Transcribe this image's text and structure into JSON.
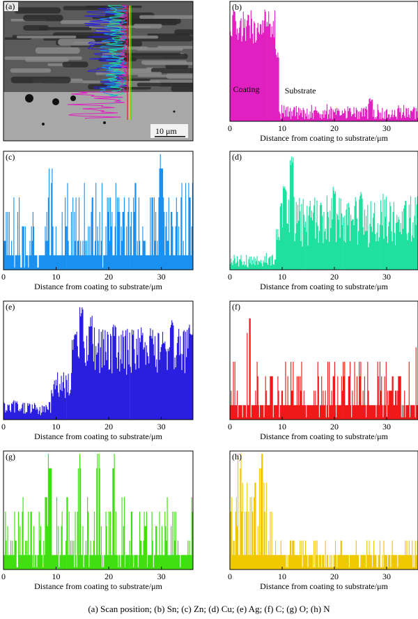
{
  "caption": "(a) Scan position; (b) Sn; (c) Zn; (d) Cu; (e) Ag; (f) C; (g) O;  (h) N",
  "sem": {
    "label": "(a)",
    "scale_bar": "10 μm"
  },
  "chart_data": [
    {
      "id": "b",
      "label": "(b)",
      "element": "Sn",
      "type": "bar",
      "color": "#e020c0",
      "xlabel": "Distance from coating to substrate/μm",
      "xticks": [
        0,
        10,
        20,
        30
      ],
      "xlim": [
        0,
        36
      ],
      "annotations": [
        "Coating",
        "Substrate"
      ],
      "profile": {
        "seed": 2,
        "base": 0.08,
        "noise": 0.05,
        "segments": [
          [
            0,
            8.6,
            0.82,
            0.15
          ],
          [
            8.6,
            36,
            0.07,
            0.06
          ]
        ],
        "peaks": [
          [
            0.8,
            0.98
          ],
          [
            3.5,
            0.95
          ],
          [
            7.0,
            0.9
          ],
          [
            9.0,
            0.62
          ],
          [
            27.0,
            0.2
          ]
        ]
      }
    },
    {
      "id": "c",
      "label": "(c)",
      "element": "Zn",
      "type": "bar",
      "color": "#1a90f0",
      "xlabel": "Distance from coating to substrate/μm",
      "xticks": [
        0,
        10,
        20,
        30
      ],
      "xlim": [
        0,
        36
      ],
      "annotations": [],
      "profile": {
        "seed": 3,
        "base": 0.3,
        "noise": 0.25,
        "quantized": true,
        "segments": [
          [
            0,
            8.5,
            0.28,
            0.25
          ],
          [
            8.5,
            36,
            0.42,
            0.3
          ]
        ],
        "peaks": [
          [
            9.0,
            0.92
          ],
          [
            30.0,
            1.0
          ]
        ]
      }
    },
    {
      "id": "d",
      "label": "(d)",
      "element": "Cu",
      "type": "bar",
      "color": "#20e0a0",
      "xlabel": "Distance from coating to substrate/μm",
      "xticks": [
        0,
        10,
        20,
        30
      ],
      "xlim": [
        0,
        36
      ],
      "annotations": [],
      "profile": {
        "seed": 4,
        "base": 0.08,
        "noise": 0.06,
        "segments": [
          [
            0,
            8.8,
            0.08,
            0.05
          ],
          [
            8.8,
            36,
            0.42,
            0.22
          ]
        ],
        "peaks": [
          [
            11.8,
            1.0
          ],
          [
            10.5,
            0.78
          ],
          [
            20.0,
            0.72
          ],
          [
            25.0,
            0.68
          ],
          [
            33.5,
            0.62
          ]
        ]
      }
    },
    {
      "id": "e",
      "label": "(e)",
      "element": "Ag",
      "type": "bar",
      "color": "#2a1ee0",
      "xlabel": "Distance from coating to substrate/μm",
      "xticks": [
        0,
        10,
        20,
        30
      ],
      "xlim": [
        0,
        36
      ],
      "annotations": [],
      "profile": {
        "seed": 5,
        "base": 0.08,
        "noise": 0.05,
        "segments": [
          [
            0,
            9.0,
            0.1,
            0.06
          ],
          [
            9.0,
            13.0,
            0.3,
            0.12
          ],
          [
            13.0,
            36,
            0.6,
            0.2
          ]
        ],
        "peaks": [
          [
            14.8,
            1.0
          ],
          [
            16.5,
            0.9
          ],
          [
            21.0,
            0.85
          ],
          [
            28.0,
            0.82
          ],
          [
            32.0,
            0.93
          ],
          [
            35.5,
            0.85
          ]
        ]
      }
    },
    {
      "id": "f",
      "label": "(f)",
      "element": "C",
      "type": "bar",
      "color": "#f01818",
      "xlabel": "Distance from coating to substrate/μm",
      "xticks": [
        0,
        10,
        20,
        30
      ],
      "xlim": [
        0,
        36
      ],
      "annotations": [],
      "profile": {
        "seed": 6,
        "base": 0.2,
        "noise": 0.2,
        "quantized": true,
        "segments": [
          [
            0,
            36,
            0.25,
            0.25
          ]
        ],
        "peaks": [
          [
            3.6,
            0.9
          ]
        ]
      }
    },
    {
      "id": "g",
      "label": "(g)",
      "element": "O",
      "type": "bar",
      "color": "#40e010",
      "xlabel": "Distance from coating to substrate/μm",
      "xticks": [
        0,
        10,
        20,
        30
      ],
      "xlim": [
        0,
        36
      ],
      "annotations": [],
      "profile": {
        "seed": 7,
        "base": 0.2,
        "noise": 0.25,
        "quantized": true,
        "segments": [
          [
            0,
            36,
            0.3,
            0.3
          ]
        ],
        "peaks": [
          [
            8.8,
            1.0
          ],
          [
            14.5,
            1.0
          ],
          [
            18.0,
            1.0
          ],
          [
            21.0,
            1.0
          ]
        ]
      }
    },
    {
      "id": "h",
      "label": "(h)",
      "element": "N",
      "type": "bar",
      "color": "#f0c800",
      "xlabel": "Distance from coating to substrate/μm",
      "xticks": [
        0,
        10,
        20,
        30
      ],
      "xlim": [
        0,
        36
      ],
      "annotations": [],
      "profile": {
        "seed": 8,
        "base": 0.1,
        "noise": 0.1,
        "quantized": true,
        "segments": [
          [
            0,
            8.2,
            0.5,
            0.3
          ],
          [
            8.2,
            36,
            0.12,
            0.1
          ]
        ],
        "peaks": [
          [
            1.8,
            1.0
          ],
          [
            6.0,
            1.0
          ]
        ]
      }
    }
  ]
}
